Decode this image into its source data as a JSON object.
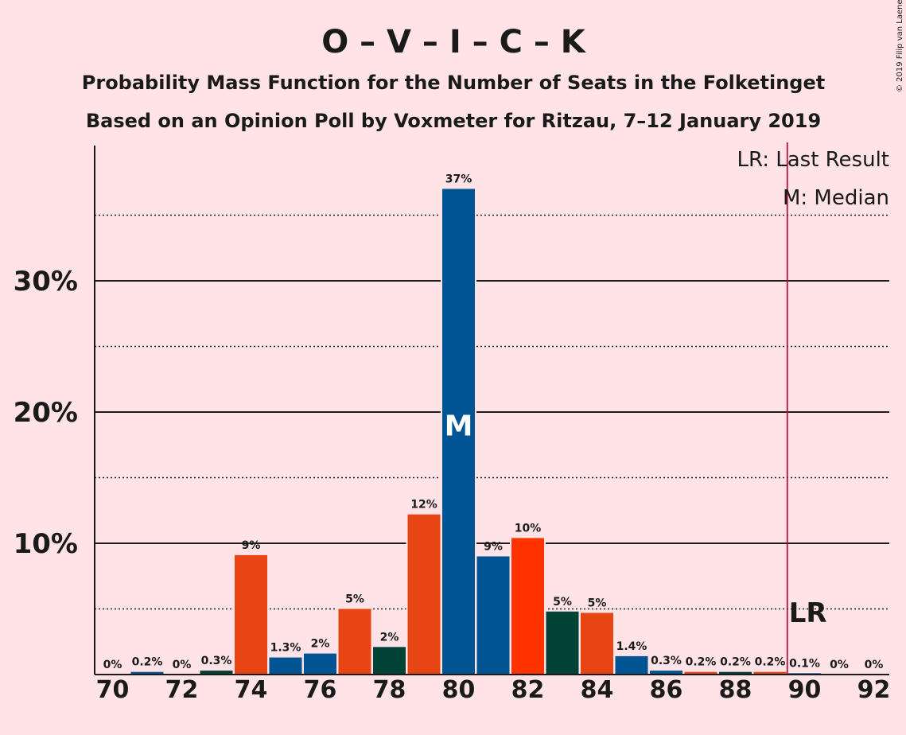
{
  "title": "O – V – I – C – K",
  "subtitle1": "Probability Mass Function for the Number of Seats in the Folketinget",
  "subtitle2": "Based on an Opinion Poll by Voxmeter for Ritzau, 7–12 January 2019",
  "copyright": "© 2019 Filip van Laenen",
  "legend": {
    "last_result": "LR: Last Result",
    "median": "M: Median"
  },
  "markers": {
    "median_label": "M",
    "last_result_label": "LR"
  },
  "colors": {
    "background": "#FFE3E6",
    "bar_colors": [
      "#005493",
      "#E84514",
      "#FF3300",
      "#004236"
    ],
    "last_result_line": "#B0143C"
  },
  "chart_data": {
    "type": "bar",
    "x": [
      70,
      71,
      72,
      73,
      74,
      75,
      76,
      77,
      78,
      79,
      80,
      81,
      82,
      83,
      84,
      85,
      86,
      87,
      88,
      89,
      90,
      91,
      92
    ],
    "values": [
      0,
      0.2,
      0,
      0.3,
      9.1,
      1.3,
      1.6,
      5.0,
      2.1,
      12.2,
      37.0,
      9.0,
      10.4,
      4.8,
      4.7,
      1.4,
      0.3,
      0.2,
      0.2,
      0.2,
      0.1,
      0,
      0
    ],
    "value_labels": [
      "0%",
      "0.2%",
      "0%",
      "0.3%",
      "9%",
      "1.3%",
      "2%",
      "5%",
      "2%",
      "12%",
      "37%",
      "9%",
      "10%",
      "5%",
      "5%",
      "1.4%",
      "0.3%",
      "0.2%",
      "0.2%",
      "0.2%",
      "0.1%",
      "0%",
      "0%"
    ],
    "bar_color_index": [
      0,
      0,
      1,
      3,
      1,
      0,
      0,
      1,
      3,
      1,
      0,
      0,
      2,
      3,
      1,
      0,
      0,
      1,
      3,
      1,
      0,
      0,
      0
    ],
    "x_ticks": [
      70,
      72,
      74,
      76,
      78,
      80,
      82,
      84,
      86,
      88,
      90,
      92
    ],
    "y_ticks_major": [
      10,
      20,
      30
    ],
    "y_tick_labels": [
      "10%",
      "20%",
      "30%"
    ],
    "y_ticks_minor": [
      5,
      15,
      25,
      35
    ],
    "ylim": [
      0,
      40.3
    ],
    "median": 80,
    "last_result": 89.5
  }
}
